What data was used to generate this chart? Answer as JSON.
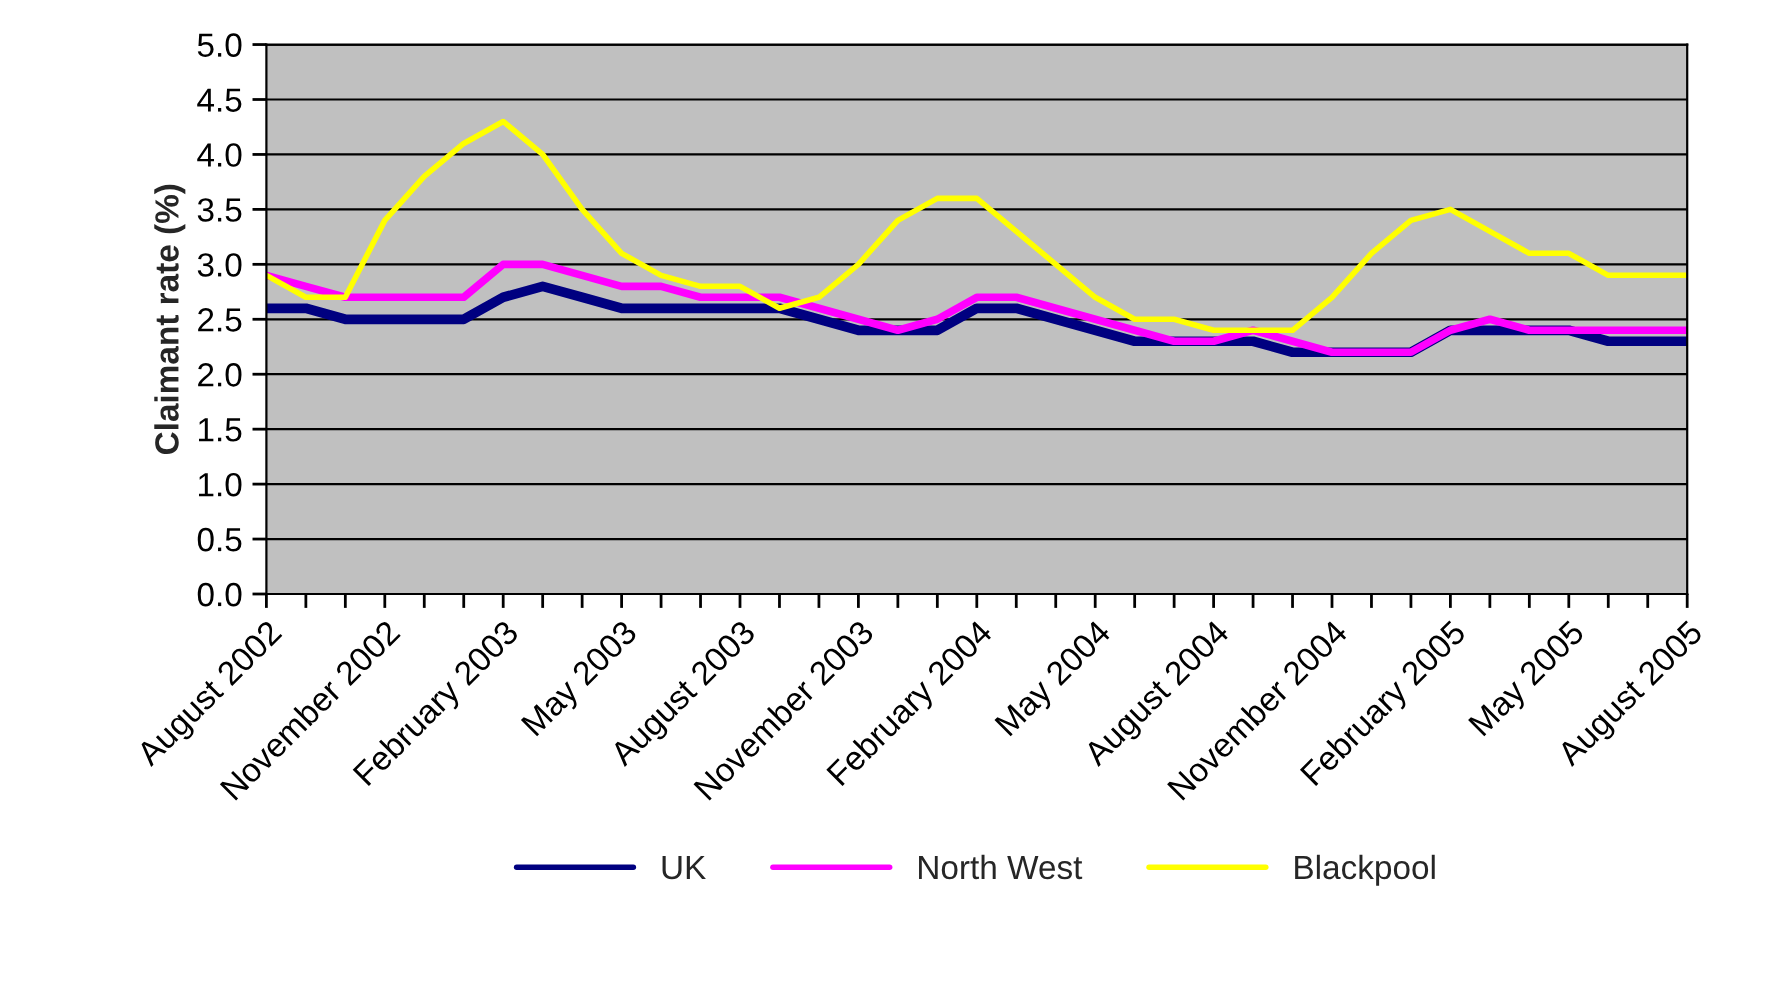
{
  "chart_data": {
    "type": "line",
    "ylabel": "Claimant rate (%)",
    "categories": [
      "August 2002",
      null,
      null,
      "November 2002",
      null,
      null,
      "February 2003",
      null,
      null,
      "May 2003",
      null,
      null,
      "August 2003",
      null,
      null,
      "November 2003",
      null,
      null,
      "February 2004",
      null,
      null,
      "May 2004",
      null,
      null,
      "August 2004",
      null,
      null,
      "November 2004",
      null,
      null,
      "February 2005",
      null,
      null,
      "May 2005",
      null,
      null,
      "August 2005"
    ],
    "series": [
      {
        "name": "UK",
        "color": "#000080",
        "values": [
          2.6,
          2.6,
          2.5,
          2.5,
          2.5,
          2.5,
          2.7,
          2.8,
          2.7,
          2.6,
          2.6,
          2.6,
          2.6,
          2.6,
          2.5,
          2.4,
          2.4,
          2.4,
          2.6,
          2.6,
          2.5,
          2.4,
          2.3,
          2.3,
          2.3,
          2.3,
          2.2,
          2.2,
          2.2,
          2.2,
          2.4,
          2.4,
          2.4,
          2.4,
          2.3,
          2.3,
          2.3
        ]
      },
      {
        "name": "North West",
        "color": "#ff00ff",
        "values": [
          2.9,
          2.8,
          2.7,
          2.7,
          2.7,
          2.7,
          3.0,
          3.0,
          2.9,
          2.8,
          2.8,
          2.7,
          2.7,
          2.7,
          2.6,
          2.5,
          2.4,
          2.5,
          2.7,
          2.7,
          2.6,
          2.5,
          2.4,
          2.3,
          2.3,
          2.4,
          2.3,
          2.2,
          2.2,
          2.2,
          2.4,
          2.5,
          2.4,
          2.4,
          2.4,
          2.4,
          2.4
        ]
      },
      {
        "name": "Blackpool",
        "color": "#ffff00",
        "values": [
          2.9,
          2.7,
          2.7,
          3.4,
          3.8,
          4.1,
          4.3,
          4.0,
          3.5,
          3.1,
          2.9,
          2.8,
          2.8,
          2.6,
          2.7,
          3.0,
          3.4,
          3.6,
          3.6,
          3.3,
          3.0,
          2.7,
          2.5,
          2.5,
          2.4,
          2.4,
          2.4,
          2.7,
          3.1,
          3.4,
          3.5,
          3.3,
          3.1,
          3.1,
          2.9,
          2.9,
          2.9
        ]
      }
    ],
    "ylim": [
      0,
      5
    ],
    "yticks": [
      {
        "value": 0,
        "label": "0.0"
      },
      {
        "value": 0.5,
        "label": "0.5"
      },
      {
        "value": 1,
        "label": "1.0"
      },
      {
        "value": 1.5,
        "label": "1.5"
      },
      {
        "value": 2,
        "label": "2.0"
      },
      {
        "value": 2.5,
        "label": "2.5"
      },
      {
        "value": 3,
        "label": "3.0"
      },
      {
        "value": 3.5,
        "label": "3.5"
      },
      {
        "value": 4,
        "label": "4.0"
      },
      {
        "value": 4.5,
        "label": "4.5"
      },
      {
        "value": 5,
        "label": "5.0"
      }
    ],
    "grid": "y",
    "legend": "bottom",
    "marker": "none",
    "line_style": "solid"
  }
}
